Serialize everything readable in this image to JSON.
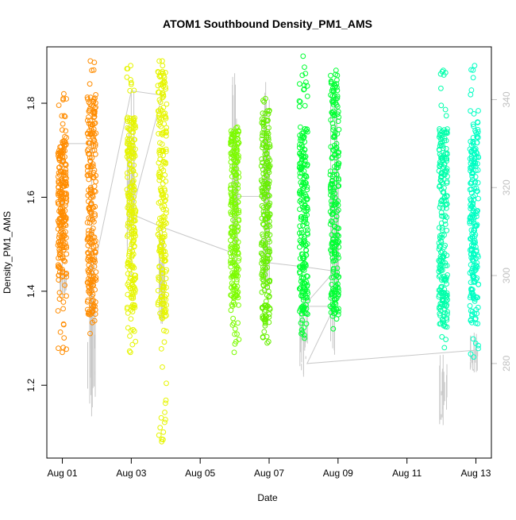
{
  "chart_data": {
    "type": "scatter",
    "title": "ATOM1 Southbound Density_PM1_AMS",
    "xlabel": "Date",
    "ylabel": "Density_PM1_AMS",
    "x_ticks": [
      "Aug 01",
      "Aug 03",
      "Aug 05",
      "Aug 07",
      "Aug 09",
      "Aug 11",
      "Aug 13"
    ],
    "x_tick_days": [
      1,
      3,
      5,
      7,
      9,
      11,
      13
    ],
    "xlim_days": [
      0.55,
      13.45
    ],
    "y_ticks": [
      "1.2",
      "1.4",
      "1.6",
      "1.8"
    ],
    "y_tick_values": [
      1.2,
      1.4,
      1.6,
      1.8
    ],
    "ylim": [
      1.045,
      1.92
    ],
    "y2_ticks": [
      "280",
      "300",
      "320",
      "340"
    ],
    "y2_tick_values": [
      280,
      300,
      320,
      340
    ],
    "y2lim": [
      258.5,
      352
    ],
    "grid": false,
    "legend": "none",
    "colors": {
      "line": "#c8c8c8",
      "axis": "#000000",
      "y2_axis": "#c0c0c0"
    },
    "clusters": [
      {
        "day": 1.0,
        "color": "#ff8c00",
        "y_min": 1.27,
        "y_max": 1.83,
        "core_min": 1.43,
        "core_max": 1.73,
        "outliers": [
          1.27,
          1.39,
          1.82,
          1.81
        ],
        "y2_line_min": 295,
        "y2_line_max": 302
      },
      {
        "day": 1.85,
        "color": "#ff8c00",
        "y_min": 1.31,
        "y_max": 1.89,
        "core_min": 1.35,
        "core_max": 1.82,
        "outliers": [
          1.31,
          1.89,
          1.87
        ],
        "y2_line_min": 268,
        "y2_line_max": 312
      },
      {
        "day": 3.0,
        "color": "#e6f500",
        "y_min": 1.27,
        "y_max": 1.88,
        "core_min": 1.36,
        "core_max": 1.77,
        "outliers": [
          1.27,
          1.88,
          1.85
        ],
        "y2_line_min": 300,
        "y2_line_max": 342
      },
      {
        "day": 3.9,
        "color": "#e6f500",
        "y_min": 1.08,
        "y_max": 1.89,
        "core_min": 1.34,
        "core_max": 1.87,
        "outliers": [
          1.08,
          1.89,
          1.88
        ],
        "y2_line_min": 289,
        "y2_line_max": 312
      },
      {
        "day": 6.0,
        "color": "#7cfc00",
        "y_min": 1.27,
        "y_max": 1.75,
        "core_min": 1.37,
        "core_max": 1.75,
        "outliers": [
          1.27,
          1.32
        ],
        "y2_line_min": 300,
        "y2_line_max": 346
      },
      {
        "day": 6.9,
        "color": "#66f000",
        "y_min": 1.29,
        "y_max": 1.81,
        "core_min": 1.33,
        "core_max": 1.79,
        "outliers": [
          1.29,
          1.81
        ],
        "y2_line_min": 296,
        "y2_line_max": 344
      },
      {
        "day": 8.0,
        "color": "#00ff33",
        "y_min": 1.3,
        "y_max": 1.9,
        "core_min": 1.35,
        "core_max": 1.75,
        "outliers": [
          1.3,
          1.9,
          1.83
        ],
        "y2_line_min": 277,
        "y2_line_max": 296
      },
      {
        "day": 8.9,
        "color": "#00ff33",
        "y_min": 1.32,
        "y_max": 1.87,
        "core_min": 1.35,
        "core_max": 1.85,
        "outliers": [
          1.32,
          1.87
        ],
        "y2_line_min": 282,
        "y2_line_max": 342
      },
      {
        "day": 12.05,
        "color": "#00ffaa",
        "y_min": 1.28,
        "y_max": 1.87,
        "core_min": 1.32,
        "core_max": 1.75,
        "outliers": [
          1.28,
          1.87,
          1.86
        ],
        "y2_line_min": 266,
        "y2_line_max": 282
      },
      {
        "day": 12.95,
        "color": "#00ffc4",
        "y_min": 1.26,
        "y_max": 1.88,
        "core_min": 1.33,
        "core_max": 1.76,
        "outliers": [
          1.26,
          1.88
        ],
        "y2_line_min": 278,
        "y2_line_max": 287
      }
    ],
    "connector_points": [
      {
        "day": 1.0,
        "y2": 300
      },
      {
        "day": 1.0,
        "y2": 330
      },
      {
        "day": 1.85,
        "y2": 330
      },
      {
        "day": 1.85,
        "y2": 299
      },
      {
        "day": 3.0,
        "y2": 342
      },
      {
        "day": 3.9,
        "y2": 341
      },
      {
        "day": 3.0,
        "y2": 314
      },
      {
        "day": 3.9,
        "y2": 311
      },
      {
        "day": 6.0,
        "y2": 305
      },
      {
        "day": 6.0,
        "y2": 318
      },
      {
        "day": 6.9,
        "y2": 318
      },
      {
        "day": 6.9,
        "y2": 303
      },
      {
        "day": 8.0,
        "y2": 302
      },
      {
        "day": 8.9,
        "y2": 301
      },
      {
        "day": 8.0,
        "y2": 293
      },
      {
        "day": 8.9,
        "y2": 293
      },
      {
        "day": 8.1,
        "y2": 280
      },
      {
        "day": 12.95,
        "y2": 283
      }
    ]
  }
}
